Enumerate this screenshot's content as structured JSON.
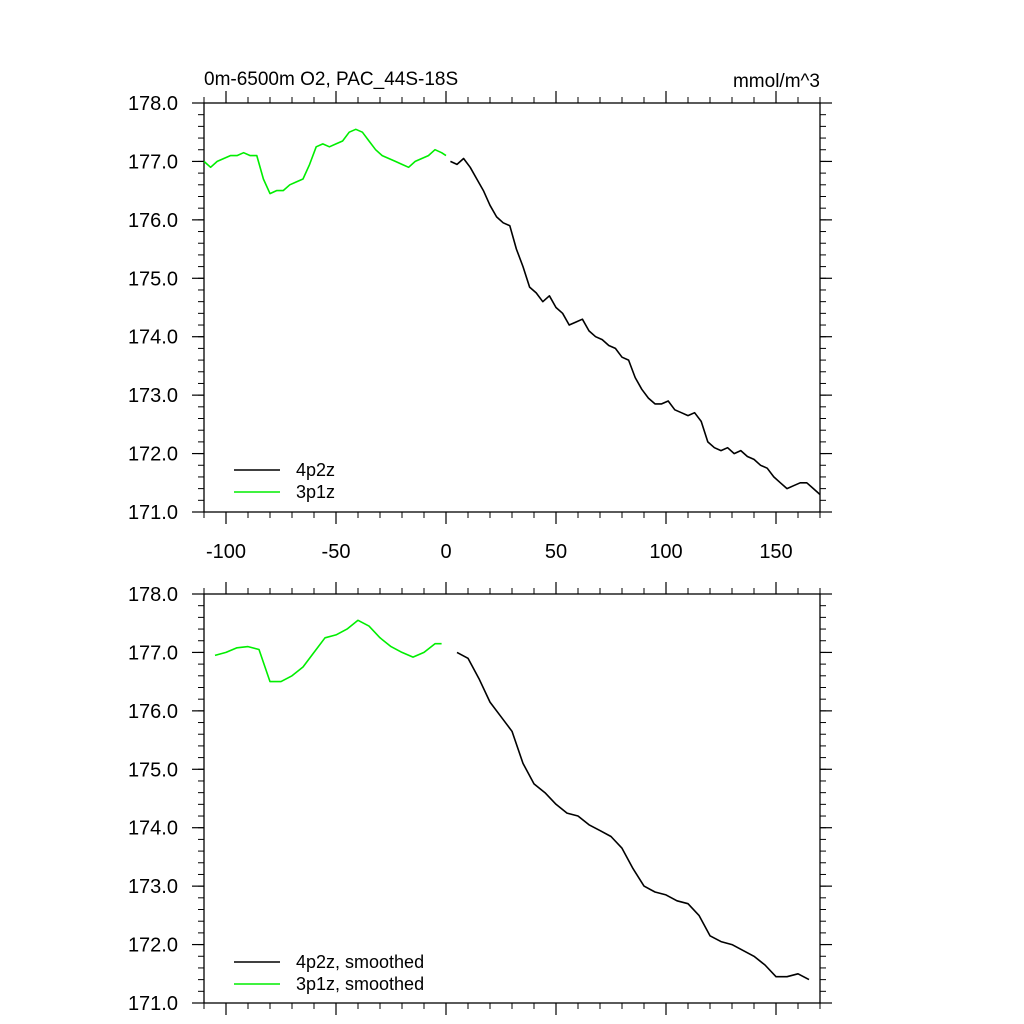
{
  "chart_data": [
    {
      "type": "line",
      "title": "0m-6500m O2, PAC_44S-18S",
      "units": "mmol/m^3",
      "xlim": [
        -110,
        170
      ],
      "ylim": [
        171.0,
        178.0
      ],
      "xticks": [
        -100,
        -50,
        0,
        50,
        100,
        150
      ],
      "xtick_labels": [
        "-100",
        "-50",
        "0",
        "50",
        "100",
        "150"
      ],
      "yticks": [
        171.0,
        172.0,
        173.0,
        174.0,
        175.0,
        176.0,
        177.0,
        178.0
      ],
      "ytick_labels": [
        "171.0",
        "172.0",
        "173.0",
        "174.0",
        "175.0",
        "176.0",
        "177.0",
        "178.0"
      ],
      "legend_position": "bottom-left",
      "series": [
        {
          "name": "4p2z",
          "color": "#000000",
          "x": [
            2,
            5,
            8,
            11,
            14,
            17,
            20,
            23,
            26,
            29,
            32,
            35,
            38,
            41,
            44,
            47,
            50,
            53,
            56,
            59,
            62,
            65,
            68,
            71,
            74,
            77,
            80,
            83,
            86,
            89,
            92,
            95,
            98,
            101,
            104,
            107,
            110,
            113,
            116,
            119,
            122,
            125,
            128,
            131,
            134,
            137,
            140,
            143,
            146,
            149,
            152,
            155,
            158,
            161,
            164,
            167,
            170
          ],
          "y": [
            177.0,
            176.95,
            177.05,
            176.9,
            176.7,
            176.5,
            176.25,
            176.05,
            175.95,
            175.9,
            175.5,
            175.2,
            174.85,
            174.75,
            174.6,
            174.7,
            174.5,
            174.4,
            174.2,
            174.25,
            174.3,
            174.1,
            174.0,
            173.95,
            173.85,
            173.8,
            173.65,
            173.6,
            173.3,
            173.1,
            172.95,
            172.85,
            172.85,
            172.9,
            172.75,
            172.7,
            172.65,
            172.7,
            172.55,
            172.2,
            172.1,
            172.05,
            172.1,
            172.0,
            172.05,
            171.95,
            171.9,
            171.8,
            171.75,
            171.6,
            171.5,
            171.4,
            171.45,
            171.5,
            171.5,
            171.4,
            171.3
          ]
        },
        {
          "name": "3p1z",
          "color": "#00ee00",
          "x": [
            -110,
            -107,
            -104,
            -101,
            -98,
            -95,
            -92,
            -89,
            -86,
            -83,
            -80,
            -77,
            -74,
            -71,
            -68,
            -65,
            -62,
            -59,
            -56,
            -53,
            -50,
            -47,
            -44,
            -41,
            -38,
            -35,
            -32,
            -29,
            -26,
            -23,
            -20,
            -17,
            -14,
            -11,
            -8,
            -5,
            -2,
            0
          ],
          "y": [
            177.0,
            176.9,
            177.0,
            177.05,
            177.1,
            177.1,
            177.15,
            177.1,
            177.1,
            176.7,
            176.45,
            176.5,
            176.5,
            176.6,
            176.65,
            176.7,
            176.95,
            177.25,
            177.3,
            177.25,
            177.3,
            177.35,
            177.5,
            177.55,
            177.5,
            177.35,
            177.2,
            177.1,
            177.05,
            177.0,
            176.95,
            176.9,
            177.0,
            177.05,
            177.1,
            177.2,
            177.15,
            177.1
          ]
        }
      ]
    },
    {
      "type": "line",
      "xlim": [
        -110,
        170
      ],
      "ylim": [
        171.0,
        178.0
      ],
      "xticks": [
        -100,
        -50,
        0,
        50,
        100,
        150
      ],
      "yticks": [
        171.0,
        172.0,
        173.0,
        174.0,
        175.0,
        176.0,
        177.0,
        178.0
      ],
      "ytick_labels": [
        "171.0",
        "172.0",
        "173.0",
        "174.0",
        "175.0",
        "176.0",
        "177.0",
        "178.0"
      ],
      "legend_position": "bottom-left",
      "series": [
        {
          "name": "4p2z, smoothed",
          "color": "#000000",
          "x": [
            5,
            10,
            15,
            20,
            25,
            30,
            35,
            40,
            45,
            50,
            55,
            60,
            65,
            70,
            75,
            80,
            85,
            90,
            95,
            100,
            105,
            110,
            115,
            120,
            125,
            130,
            135,
            140,
            145,
            150,
            155,
            160,
            165
          ],
          "y": [
            177.0,
            176.9,
            176.55,
            176.15,
            175.9,
            175.65,
            175.1,
            174.75,
            174.6,
            174.4,
            174.25,
            174.2,
            174.05,
            173.95,
            173.85,
            173.65,
            173.3,
            173.0,
            172.9,
            172.85,
            172.75,
            172.7,
            172.5,
            172.15,
            172.05,
            172.0,
            171.9,
            171.8,
            171.65,
            171.45,
            171.45,
            171.5,
            171.4
          ]
        },
        {
          "name": "3p1z, smoothed",
          "color": "#00ee00",
          "x": [
            -105,
            -100,
            -95,
            -90,
            -85,
            -80,
            -75,
            -70,
            -65,
            -60,
            -55,
            -50,
            -45,
            -40,
            -35,
            -30,
            -25,
            -20,
            -15,
            -10,
            -5,
            -2
          ],
          "y": [
            176.95,
            177.0,
            177.08,
            177.1,
            177.05,
            176.5,
            176.5,
            176.6,
            176.75,
            177.0,
            177.25,
            177.3,
            177.4,
            177.55,
            177.45,
            177.25,
            177.1,
            177.0,
            176.92,
            177.0,
            177.15,
            177.15
          ]
        }
      ]
    }
  ]
}
